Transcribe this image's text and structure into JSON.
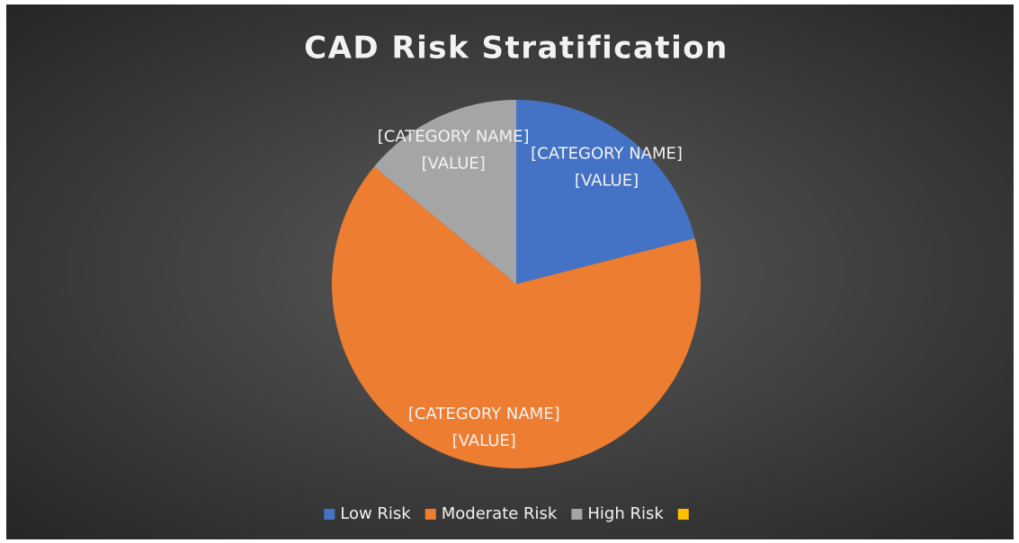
{
  "chart_data": {
    "type": "pie",
    "title": "CAD Risk Stratification",
    "categories": [
      "Low Risk",
      "Moderate Risk",
      "High Risk",
      null
    ],
    "values": [
      21,
      65,
      14,
      0
    ],
    "colors": [
      "#4472c4",
      "#ed7d31",
      "#a5a5a5",
      "#ffc000"
    ],
    "data_labels": [
      [
        "[CATEGORY NAME]",
        "[VALUE]"
      ],
      [
        "[CATEGORY NAME]",
        "[VALUE]"
      ],
      [
        "[CATEGORY NAME]",
        "[VALUE]"
      ]
    ],
    "legend": "bottom"
  }
}
